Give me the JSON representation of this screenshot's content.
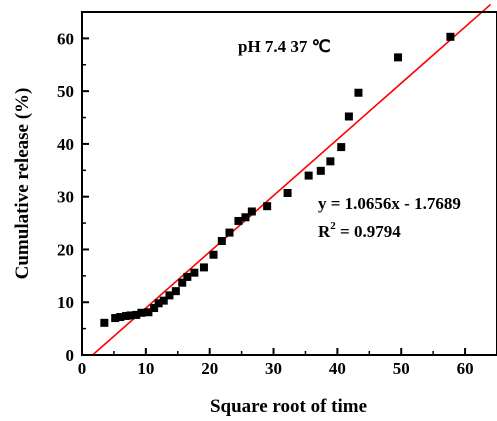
{
  "chart_data": {
    "type": "scatter",
    "xlabel": "Square root of time",
    "ylabel": "Cumulative release (%)",
    "xlim": [
      0,
      65
    ],
    "ylim": [
      0,
      65
    ],
    "xticks": [
      0,
      10,
      20,
      30,
      40,
      50,
      60
    ],
    "yticks": [
      0,
      10,
      20,
      30,
      40,
      50,
      60
    ],
    "grid": false,
    "legend": "none",
    "annotations": {
      "condition": "pH 7.4 37 ℃",
      "equation": "y = 1.0656x - 1.7689",
      "r2_prefix": "R",
      "r2_superscript": "2",
      "r2_suffix": " = 0.9794"
    },
    "fit_line": {
      "slope": 1.0656,
      "intercept": -1.7689,
      "x_range": [
        1.7,
        64
      ],
      "color": "#ff0000"
    },
    "marker_color": "#000000",
    "points": [
      [
        3.5,
        6.1
      ],
      [
        5.2,
        7.0
      ],
      [
        6.0,
        7.2
      ],
      [
        6.9,
        7.4
      ],
      [
        7.6,
        7.5
      ],
      [
        8.5,
        7.6
      ],
      [
        9.3,
        8.0
      ],
      [
        10.4,
        8.1
      ],
      [
        11.3,
        8.9
      ],
      [
        12.0,
        9.8
      ],
      [
        12.8,
        10.3
      ],
      [
        13.7,
        11.3
      ],
      [
        14.7,
        12.1
      ],
      [
        15.7,
        13.7
      ],
      [
        16.5,
        14.8
      ],
      [
        17.6,
        15.6
      ],
      [
        19.1,
        16.6
      ],
      [
        20.6,
        19.0
      ],
      [
        21.9,
        21.6
      ],
      [
        23.1,
        23.2
      ],
      [
        24.5,
        25.4
      ],
      [
        25.6,
        26.1
      ],
      [
        26.6,
        27.2
      ],
      [
        29.0,
        28.2
      ],
      [
        32.2,
        30.7
      ],
      [
        35.5,
        34.0
      ],
      [
        37.4,
        34.9
      ],
      [
        38.9,
        36.7
      ],
      [
        40.6,
        39.4
      ],
      [
        41.8,
        45.2
      ],
      [
        43.3,
        49.7
      ],
      [
        49.5,
        56.4
      ],
      [
        57.7,
        60.3
      ]
    ]
  }
}
